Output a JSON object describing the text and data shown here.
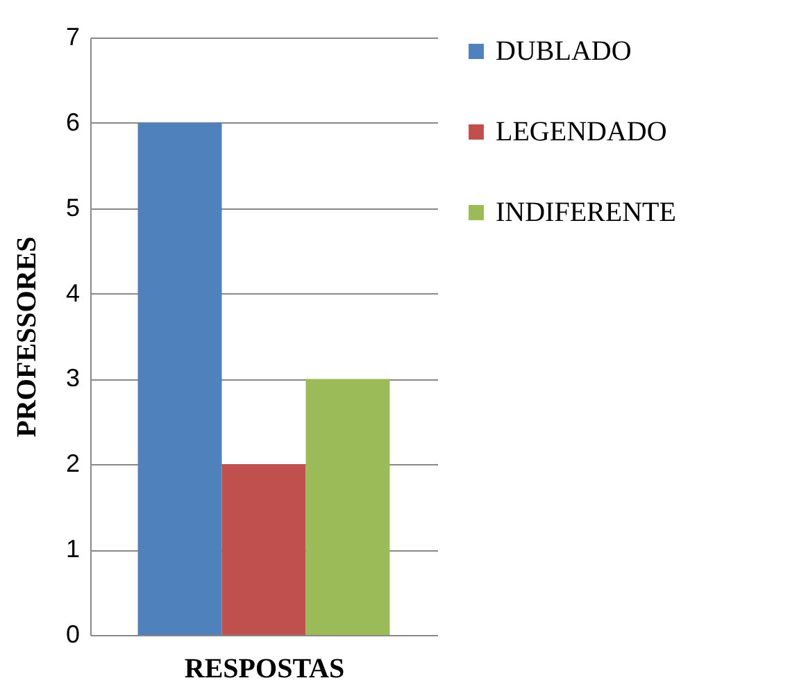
{
  "chart_data": {
    "type": "bar",
    "categories": [
      null
    ],
    "xlabel": "RESPOSTAS",
    "ylabel": "PROFESSORES",
    "series": [
      {
        "name": "DUBLADO",
        "color": "#4f81bd",
        "values": [
          6
        ]
      },
      {
        "name": "LEGENDADO",
        "color": "#c0504d",
        "values": [
          2
        ]
      },
      {
        "name": "INDIFERENTE",
        "color": "#9bbb59",
        "values": [
          3
        ]
      }
    ],
    "ylim": [
      0,
      7
    ],
    "yticks": [
      0,
      1,
      2,
      3,
      4,
      5,
      6,
      7
    ],
    "grid": "y",
    "legend": "right"
  }
}
